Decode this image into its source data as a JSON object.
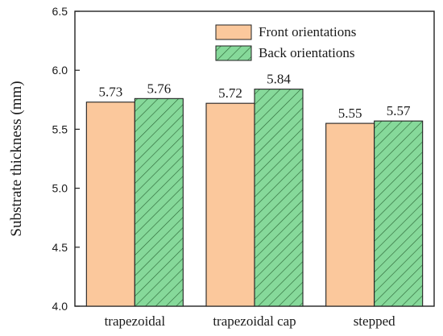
{
  "chart_data": {
    "type": "bar",
    "title": "",
    "xlabel": "",
    "ylabel": "Substrate thickness  (mm)",
    "ylim": [
      4.0,
      6.5
    ],
    "yticks": [
      "4.0",
      "4.5",
      "5.0",
      "5.5",
      "6.0",
      "6.5"
    ],
    "categories": [
      "trapezoidal",
      "trapezoidal  cap",
      "stepped"
    ],
    "series": [
      {
        "name": "Front orientations",
        "values": [
          5.73,
          5.72,
          5.55
        ],
        "labels": [
          "5.73",
          "5.72",
          "5.55"
        ],
        "color": "#fbc89c",
        "pattern": "solid"
      },
      {
        "name": "Back orientations",
        "values": [
          5.76,
          5.84,
          5.57
        ],
        "labels": [
          "5.76",
          "5.84",
          "5.57"
        ],
        "color": "#86d99a",
        "pattern": "hatch"
      }
    ],
    "legend": "top-right",
    "grid": false
  }
}
